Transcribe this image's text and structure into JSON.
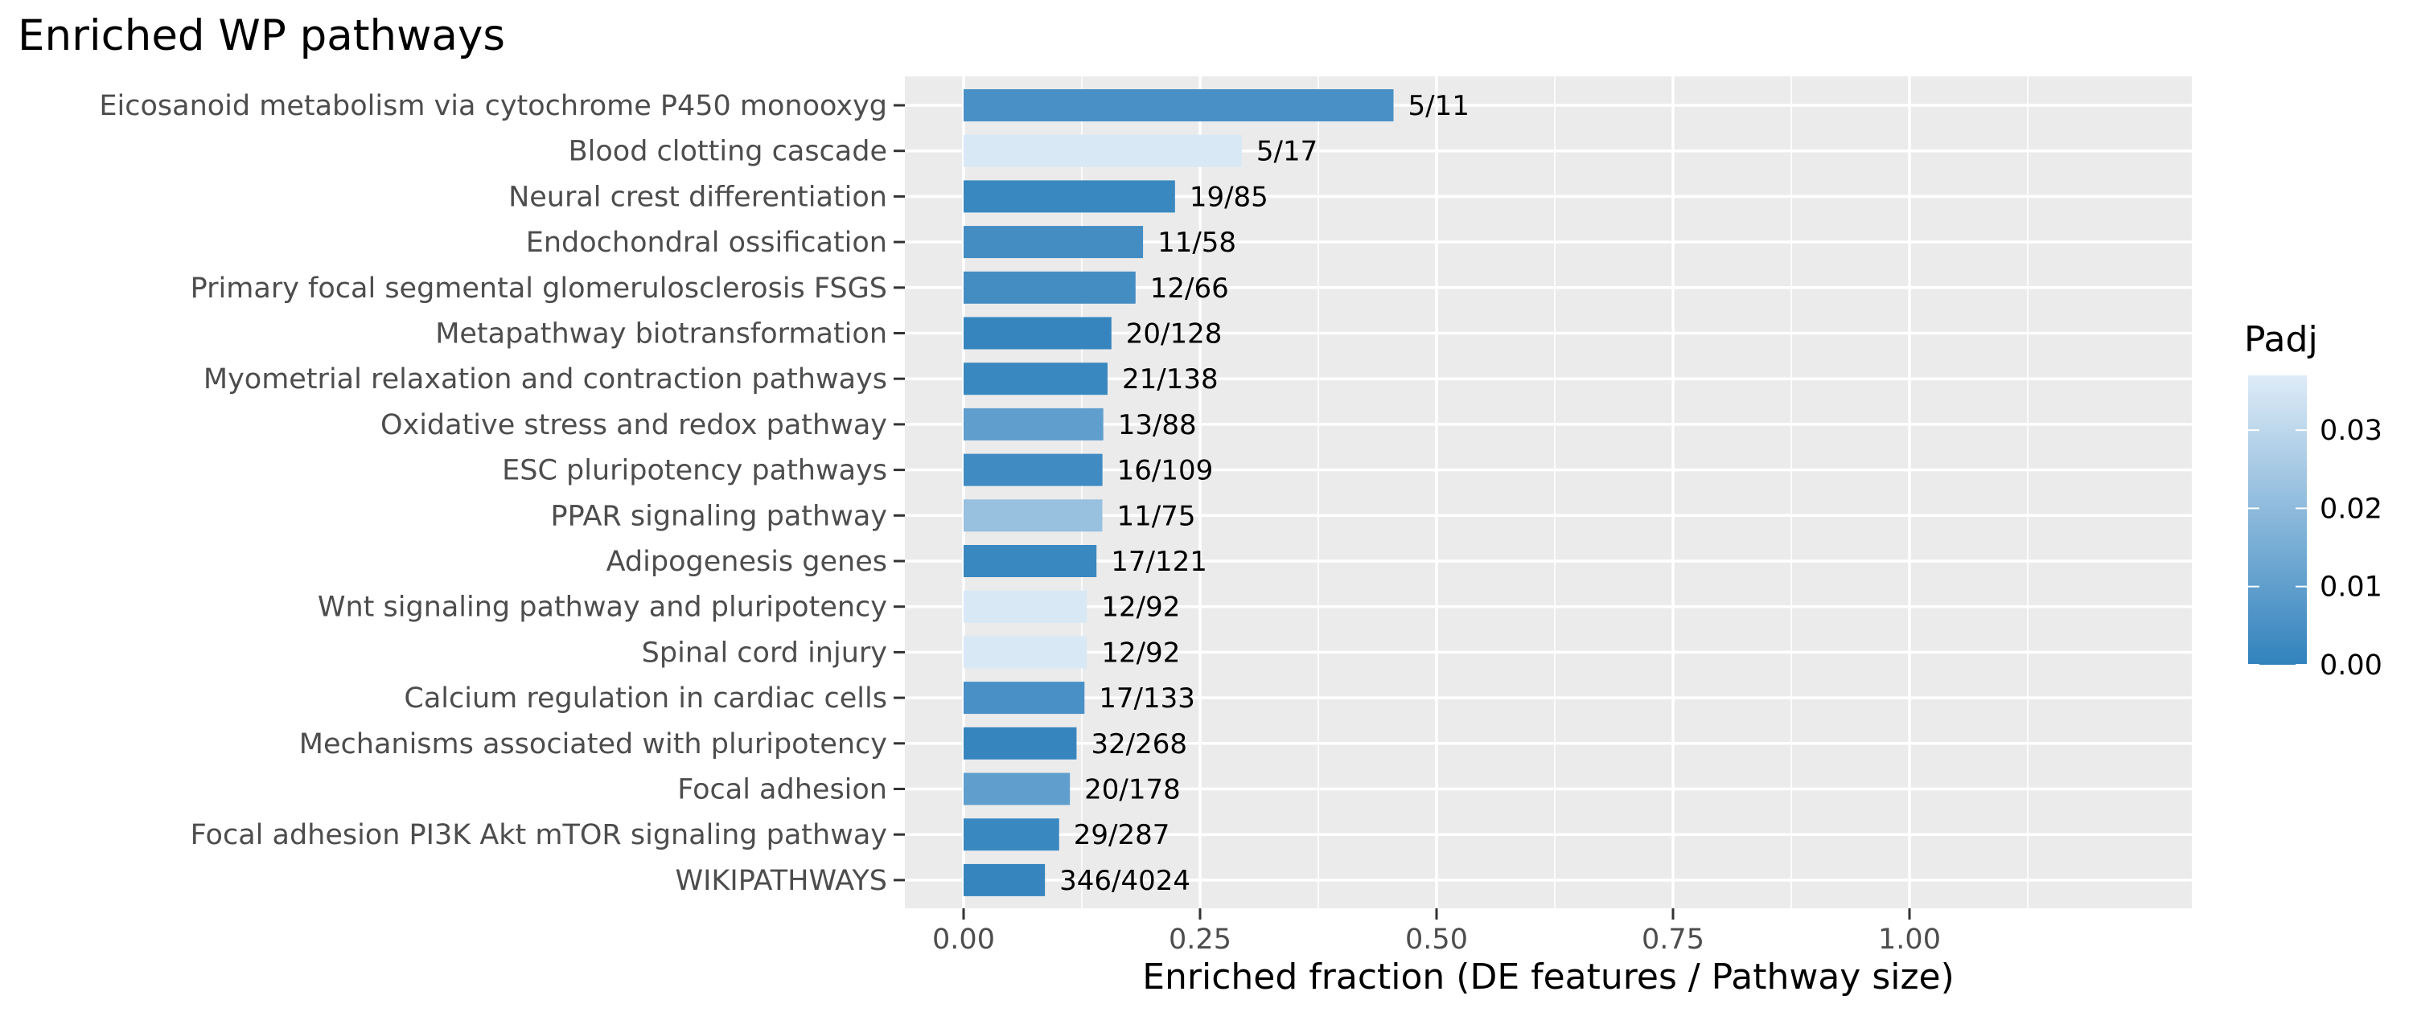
{
  "chart_data": {
    "type": "bar",
    "orientation": "horizontal",
    "title": "Enriched WP pathways",
    "xlabel": "Enriched fraction (DE features / Pathway size)",
    "ylabel": "",
    "xlim": [
      -0.0625,
      1.3125
    ],
    "x_ticks": [
      0.0,
      0.25,
      0.5,
      0.75,
      1.0
    ],
    "x_tick_labels": [
      "0.00",
      "0.25",
      "0.50",
      "0.75",
      "1.00"
    ],
    "grid": true,
    "panel_background": "#ebebeb",
    "categories": [
      "Eicosanoid metabolism via cytochrome P450 monooxyg",
      "Blood clotting cascade",
      "Neural crest differentiation",
      "Endochondral ossification",
      "Primary focal segmental glomerulosclerosis FSGS ",
      "Metapathway biotransformation",
      "Myometrial relaxation and contraction pathways",
      "Oxidative stress and redox pathway",
      "ESC pluripotency pathways",
      "PPAR signaling pathway",
      "Adipogenesis genes",
      "Wnt signaling pathway and pluripotency",
      "Spinal cord injury",
      "Calcium regulation in cardiac cells",
      "Mechanisms associated with pluripotency",
      "Focal adhesion",
      "Focal adhesion PI3K Akt mTOR signaling pathway",
      "WIKIPATHWAYS"
    ],
    "values": [
      0.4545,
      0.2941,
      0.2235,
      0.1897,
      0.1818,
      0.1563,
      0.1522,
      0.1477,
      0.1468,
      0.1467,
      0.1405,
      0.1304,
      0.1304,
      0.1278,
      0.1194,
      0.1124,
      0.101,
      0.086
    ],
    "bar_labels": [
      "5/11",
      "5/17",
      "19/85",
      "11/58",
      "12/66",
      "20/128",
      "21/138",
      "13/88",
      "16/109",
      "11/75",
      "17/121",
      "12/92",
      "12/92",
      "17/133",
      "32/268",
      "20/178",
      "29/287",
      "346/4024"
    ],
    "padj": [
      0.005,
      0.036,
      0.002,
      0.004,
      0.004,
      0.001,
      0.002,
      0.01,
      0.003,
      0.022,
      0.002,
      0.036,
      0.036,
      0.005,
      0.001,
      0.01,
      0.002,
      0.001
    ],
    "color_scale": {
      "title": "Padj",
      "low_color": "#3182bd",
      "high_color": "#deebf7",
      "range": [
        0.0,
        0.037
      ],
      "breaks": [
        0.0,
        0.01,
        0.02,
        0.03
      ],
      "break_labels": [
        "0.00",
        "0.01",
        "0.02",
        "0.03"
      ]
    },
    "legend_position": "right"
  }
}
